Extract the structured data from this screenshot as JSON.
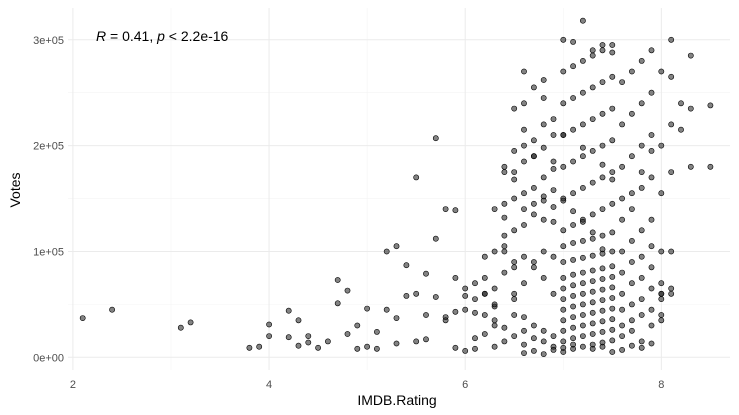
{
  "chart_data": {
    "type": "scatter",
    "xlabel": "IMDB.Rating",
    "ylabel": "Votes",
    "xlim": [
      1.95,
      8.7
    ],
    "ylim": [
      -12000,
      330000
    ],
    "x_ticks": [
      2,
      4,
      6,
      8
    ],
    "x_tick_labels": [
      "2",
      "4",
      "6",
      "8"
    ],
    "y_ticks": [
      0,
      100000,
      200000,
      300000
    ],
    "y_tick_labels": [
      "0e+00",
      "1e+05",
      "2e+05",
      "3e+05"
    ],
    "annotation": {
      "r_symbol": "R",
      "r_text": " = 0.41, ",
      "p_symbol": "p",
      "p_text": " < 2.2e-16"
    },
    "grid": true,
    "theme": "minimal",
    "point_color": "#333333",
    "x": [
      2.1,
      2.4,
      3.1,
      3.2,
      3.8,
      3.9,
      4.0,
      4.2,
      4.2,
      4.3,
      4.3,
      4.4,
      4.5,
      4.6,
      4.7,
      4.8,
      4.9,
      5.0,
      5.0,
      5.1,
      5.2,
      5.3,
      5.4,
      5.5,
      5.6,
      5.7,
      5.8,
      5.9,
      6.0,
      4.0,
      4.4,
      4.9,
      5.1,
      5.3,
      5.5,
      5.6,
      5.8,
      5.9,
      4.7,
      4.8,
      5.2,
      5.4,
      5.6,
      5.8,
      5.9,
      5.7,
      5.9,
      6.0,
      5.5,
      5.7,
      5.3,
      6.0,
      6.1,
      6.1,
      6.1,
      6.2,
      6.2,
      6.2,
      6.3,
      6.3,
      6.3,
      6.3,
      6.4,
      6.4,
      6.5,
      6.5,
      6.5,
      6.6,
      6.6,
      6.6,
      6.7,
      6.7,
      6.8,
      6.8,
      6.9,
      6.9,
      6.1,
      6.2,
      6.2,
      6.3,
      6.4,
      6.4,
      6.5,
      6.5,
      6.6,
      6.7,
      6.8,
      6.9,
      6.2,
      6.3,
      6.4,
      6.5,
      6.6,
      6.7,
      6.8,
      6.9,
      6.0,
      6.1,
      6.3,
      6.4,
      6.5,
      6.6,
      6.7,
      6.8,
      6.9,
      6.4,
      6.5,
      6.6,
      6.6,
      6.7,
      6.7,
      6.8,
      6.8,
      6.9,
      6.9,
      6.4,
      6.5,
      6.6,
      6.7,
      6.8,
      6.9,
      6.5,
      6.6,
      6.7,
      6.8,
      6.3,
      6.4,
      6.6,
      6.8,
      6.9,
      6.5,
      6.6,
      6.7,
      6.8,
      6.9,
      6.6,
      6.8,
      6.4,
      6.5,
      6.7,
      6.9,
      7.0,
      7.0,
      7.0,
      7.0,
      7.0,
      7.0,
      7.0,
      7.0,
      7.1,
      7.1,
      7.1,
      7.1,
      7.1,
      7.1,
      7.1,
      7.1,
      7.2,
      7.2,
      7.2,
      7.2,
      7.2,
      7.2,
      7.2,
      7.2,
      7.3,
      7.3,
      7.3,
      7.3,
      7.3,
      7.3,
      7.3,
      7.3,
      7.4,
      7.4,
      7.4,
      7.4,
      7.4,
      7.4,
      7.4,
      7.4,
      7.5,
      7.5,
      7.5,
      7.5,
      7.5,
      7.5,
      7.5,
      7.5,
      7.0,
      7.1,
      7.2,
      7.3,
      7.4,
      7.5,
      7.0,
      7.1,
      7.2,
      7.3,
      7.4,
      7.5,
      7.0,
      7.1,
      7.2,
      7.3,
      7.4,
      7.5,
      7.0,
      7.1,
      7.2,
      7.3,
      7.4,
      7.5,
      7.0,
      7.1,
      7.2,
      7.3,
      7.4,
      7.5,
      7.0,
      7.1,
      7.2,
      7.3,
      7.4,
      7.5,
      7.0,
      7.1,
      7.2,
      7.3,
      7.4,
      7.5,
      7.0,
      7.1,
      7.2,
      7.3,
      7.4,
      7.5,
      7.0,
      7.1,
      7.2,
      7.3,
      7.4,
      7.5,
      7.0,
      7.2,
      7.4,
      7.1,
      7.3,
      7.5,
      7.0,
      7.2,
      7.4,
      7.6,
      7.6,
      7.6,
      7.6,
      7.6,
      7.6,
      7.7,
      7.7,
      7.7,
      7.7,
      7.7,
      7.7,
      7.8,
      7.8,
      7.8,
      7.8,
      7.8,
      7.8,
      7.9,
      7.9,
      7.9,
      7.9,
      7.9,
      7.9,
      7.6,
      7.7,
      7.8,
      7.9,
      7.6,
      7.7,
      7.8,
      7.9,
      7.6,
      7.7,
      7.8,
      7.9,
      7.6,
      7.7,
      7.8,
      7.9,
      7.6,
      7.7,
      7.8,
      7.9,
      8.0,
      8.0,
      8.0,
      8.0,
      8.0,
      8.0,
      8.0,
      8.0,
      8.0,
      8.1,
      8.1,
      8.1,
      8.1,
      8.1,
      8.1,
      8.1,
      8.2,
      8.2,
      8.3,
      8.3,
      8.3,
      8.5,
      8.5,
      6.6,
      6.7,
      6.8,
      6.9,
      7.0,
      7.1,
      7.3,
      7.4,
      7.5,
      7.6,
      7.7,
      7.8,
      7.9,
      8.0
    ],
    "y": [
      37000,
      45000,
      28000,
      33000,
      9000,
      10000,
      31000,
      19000,
      44000,
      35000,
      11000,
      20000,
      9000,
      15000,
      51000,
      22000,
      30000,
      46000,
      10000,
      24000,
      45000,
      37000,
      58000,
      60000,
      40000,
      57000,
      38000,
      43000,
      45000,
      20000,
      14000,
      8000,
      8000,
      13000,
      15000,
      17000,
      35000,
      9000,
      73000,
      63000,
      100000,
      87000,
      79000,
      140000,
      139000,
      207000,
      75000,
      58000,
      170000,
      112000,
      105000,
      6000,
      8000,
      18000,
      42000,
      22000,
      40000,
      60000,
      10000,
      30000,
      35000,
      48000,
      15000,
      28000,
      20000,
      40000,
      55000,
      12000,
      25000,
      38000,
      18000,
      30000,
      15000,
      25000,
      10000,
      20000,
      55000,
      60000,
      75000,
      65000,
      80000,
      100000,
      60000,
      85000,
      70000,
      90000,
      75000,
      60000,
      95000,
      100000,
      105000,
      90000,
      95000,
      85000,
      100000,
      95000,
      65000,
      70000,
      50000,
      115000,
      120000,
      125000,
      135000,
      130000,
      128000,
      145000,
      150000,
      140000,
      155000,
      160000,
      145000,
      152000,
      148000,
      158000,
      142000,
      180000,
      175000,
      185000,
      190000,
      170000,
      178000,
      195000,
      200000,
      205000,
      198000,
      140000,
      132000,
      215000,
      220000,
      210000,
      235000,
      240000,
      255000,
      262000,
      225000,
      270000,
      245000,
      175000,
      168000,
      190000,
      185000,
      5000,
      15000,
      25000,
      35000,
      45000,
      55000,
      65000,
      75000,
      8000,
      18000,
      28000,
      38000,
      48000,
      58000,
      68000,
      78000,
      10000,
      20000,
      30000,
      40000,
      50000,
      60000,
      70000,
      80000,
      12000,
      22000,
      32000,
      42000,
      52000,
      62000,
      72000,
      82000,
      14000,
      24000,
      34000,
      44000,
      54000,
      64000,
      74000,
      84000,
      16000,
      26000,
      36000,
      46000,
      56000,
      66000,
      76000,
      86000,
      90000,
      92000,
      94000,
      96000,
      98000,
      100000,
      105000,
      108000,
      110000,
      112000,
      115000,
      118000,
      120000,
      125000,
      130000,
      135000,
      140000,
      145000,
      150000,
      155000,
      160000,
      165000,
      170000,
      175000,
      180000,
      185000,
      190000,
      195000,
      200000,
      205000,
      210000,
      215000,
      220000,
      225000,
      230000,
      235000,
      240000,
      245000,
      250000,
      255000,
      260000,
      265000,
      270000,
      275000,
      280000,
      285000,
      290000,
      295000,
      300000,
      298000,
      318000,
      290000,
      295000,
      288000,
      148000,
      128000,
      102000,
      138000,
      118000,
      168000,
      210000,
      198000,
      182000,
      20000,
      30000,
      45000,
      60000,
      80000,
      100000,
      25000,
      35000,
      50000,
      70000,
      90000,
      110000,
      15000,
      40000,
      55000,
      75000,
      95000,
      120000,
      30000,
      45000,
      65000,
      85000,
      105000,
      130000,
      150000,
      140000,
      160000,
      170000,
      180000,
      190000,
      200000,
      210000,
      220000,
      230000,
      240000,
      250000,
      260000,
      270000,
      280000,
      290000,
      130000,
      155000,
      175000,
      195000,
      35000,
      40000,
      55000,
      60000,
      70000,
      100000,
      155000,
      200000,
      270000,
      60000,
      65000,
      100000,
      175000,
      220000,
      265000,
      300000,
      215000,
      240000,
      180000,
      235000,
      285000,
      180000,
      238000,
      4000,
      6000,
      3000,
      7000,
      9000,
      12000,
      8000,
      10000,
      5000,
      7000,
      11000,
      9000,
      13000,
      60000
    ],
    "series_names": []
  }
}
